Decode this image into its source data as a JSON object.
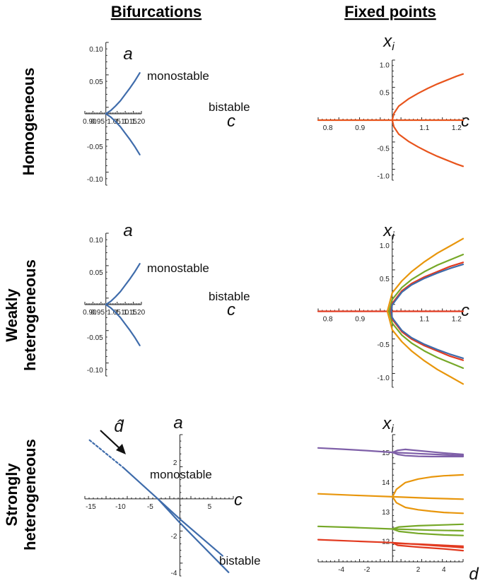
{
  "column_titles": {
    "left": "Bifurcations",
    "right": "Fixed points"
  },
  "row_labels": {
    "homogeneous": [
      "Homogeneous"
    ],
    "weakly": [
      "Weakly",
      "heterogeneous"
    ],
    "strongly": [
      "Strongly",
      "heterogeneous"
    ]
  },
  "colors": {
    "blue": "#3f6cab",
    "orange_red": "#e8541c",
    "orange": "#e8960c",
    "green": "#76a828",
    "purple": "#7e5fa8",
    "red": "#e23a20"
  },
  "chart_data": [
    {
      "id": "bif-homogeneous",
      "type": "line",
      "title": "Bifurcations — Homogeneous",
      "xlabel": "c",
      "ylabel": "a",
      "xlim": [
        0.87,
        1.22
      ],
      "ylim": [
        -0.11,
        0.11
      ],
      "xticks": [
        "0.90",
        "0.95",
        "1.05",
        "1.10",
        "1.15",
        "1.20"
      ],
      "yticks": [
        "0.10",
        "0.05",
        "-0.05",
        "-0.10"
      ],
      "regions": [
        "monostable",
        "bistable"
      ],
      "series": [
        {
          "name": "upper branch",
          "color": "#3f6cab",
          "x": [
            1.0,
            1.03,
            1.06,
            1.09,
            1.12,
            1.15,
            1.18,
            1.21
          ],
          "y": [
            0.0,
            0.005,
            0.012,
            0.02,
            0.03,
            0.04,
            0.051,
            0.063
          ]
        },
        {
          "name": "lower branch",
          "color": "#3f6cab",
          "x": [
            1.0,
            1.03,
            1.06,
            1.09,
            1.12,
            1.15,
            1.18,
            1.21
          ],
          "y": [
            0.0,
            -0.005,
            -0.012,
            -0.02,
            -0.03,
            -0.04,
            -0.051,
            -0.063
          ]
        }
      ]
    },
    {
      "id": "fp-homogeneous",
      "type": "line",
      "title": "Fixed points — Homogeneous",
      "xlabel": "c",
      "ylabel": "x_i",
      "xlim": [
        0.77,
        1.22
      ],
      "ylim": [
        -1.08,
        1.08
      ],
      "xticks": [
        "0.8",
        "0.9",
        "1.1",
        "1.2"
      ],
      "yticks": [
        "1.0",
        "0.5",
        "-0.5",
        "-1.0"
      ],
      "series": [
        {
          "name": "trivial",
          "color": "#e8541c",
          "x": [
            0.77,
            1.22
          ],
          "y": [
            0.0,
            0.0
          ]
        },
        {
          "name": "upper",
          "color": "#e8541c",
          "x": [
            1.0,
            1.005,
            1.02,
            1.05,
            1.08,
            1.11,
            1.14,
            1.17,
            1.2,
            1.22
          ],
          "y": [
            0.0,
            0.12,
            0.25,
            0.38,
            0.48,
            0.57,
            0.65,
            0.72,
            0.79,
            0.83
          ]
        },
        {
          "name": "lower",
          "color": "#e8541c",
          "x": [
            1.0,
            1.005,
            1.02,
            1.05,
            1.08,
            1.11,
            1.14,
            1.17,
            1.2,
            1.22
          ],
          "y": [
            0.0,
            -0.12,
            -0.25,
            -0.38,
            -0.48,
            -0.57,
            -0.65,
            -0.72,
            -0.79,
            -0.83
          ]
        }
      ]
    },
    {
      "id": "bif-weak",
      "type": "line",
      "title": "Bifurcations — Weakly heterogeneous",
      "xlabel": "c",
      "ylabel": "a",
      "xlim": [
        0.87,
        1.22
      ],
      "ylim": [
        -0.11,
        0.11
      ],
      "xticks": [
        "0.90",
        "0.95",
        "1.05",
        "1.10",
        "1.15",
        "1.20"
      ],
      "yticks": [
        "0.10",
        "0.05",
        "-0.05",
        "-0.10"
      ],
      "regions": [
        "monostable",
        "bistable"
      ],
      "series": [
        {
          "name": "upper branch",
          "color": "#3f6cab",
          "x": [
            1.0,
            1.03,
            1.06,
            1.09,
            1.12,
            1.15,
            1.18,
            1.21
          ],
          "y": [
            0.0,
            0.005,
            0.012,
            0.02,
            0.03,
            0.04,
            0.051,
            0.063
          ]
        },
        {
          "name": "lower branch",
          "color": "#3f6cab",
          "x": [
            1.0,
            1.03,
            1.06,
            1.09,
            1.12,
            1.15,
            1.18,
            1.21
          ],
          "y": [
            0.0,
            -0.005,
            -0.012,
            -0.02,
            -0.03,
            -0.04,
            -0.051,
            -0.063
          ]
        }
      ]
    },
    {
      "id": "fp-weak",
      "type": "line",
      "title": "Fixed points — Weakly heterogeneous",
      "xlabel": "c",
      "ylabel": "x_i",
      "xlim": [
        0.77,
        1.22
      ],
      "ylim": [
        -1.15,
        1.15
      ],
      "xticks": [
        "0.8",
        "0.9",
        "1.1",
        "1.2"
      ],
      "yticks": [
        "1.0",
        "0.5",
        "-0.5",
        "-1.0"
      ],
      "series": [
        {
          "name": "trivial",
          "color": "#e23a20",
          "x": [
            0.77,
            1.22
          ],
          "y": [
            0.0,
            0.0
          ]
        },
        {
          "name": "orange +",
          "color": "#e8960c",
          "x": [
            0.985,
            1.0,
            1.03,
            1.06,
            1.1,
            1.14,
            1.18,
            1.22
          ],
          "y": [
            0.0,
            0.28,
            0.46,
            0.6,
            0.75,
            0.88,
            0.99,
            1.1
          ]
        },
        {
          "name": "orange -",
          "color": "#e8960c",
          "x": [
            0.985,
            1.0,
            1.03,
            1.06,
            1.1,
            1.14,
            1.18,
            1.22
          ],
          "y": [
            0.0,
            -0.28,
            -0.46,
            -0.6,
            -0.75,
            -0.88,
            -0.99,
            -1.1
          ]
        },
        {
          "name": "green +",
          "color": "#76a828",
          "x": [
            0.99,
            1.0,
            1.03,
            1.06,
            1.1,
            1.14,
            1.18,
            1.22
          ],
          "y": [
            0.0,
            0.18,
            0.36,
            0.48,
            0.6,
            0.7,
            0.78,
            0.86
          ]
        },
        {
          "name": "green -",
          "color": "#76a828",
          "x": [
            0.99,
            1.0,
            1.03,
            1.06,
            1.1,
            1.14,
            1.18,
            1.22
          ],
          "y": [
            0.0,
            -0.18,
            -0.36,
            -0.48,
            -0.6,
            -0.7,
            -0.78,
            -0.86
          ]
        },
        {
          "name": "red +",
          "color": "#e23a20",
          "x": [
            0.995,
            1.0,
            1.03,
            1.06,
            1.1,
            1.14,
            1.18,
            1.22
          ],
          "y": [
            0.0,
            0.12,
            0.31,
            0.42,
            0.52,
            0.6,
            0.68,
            0.74
          ]
        },
        {
          "name": "red -",
          "color": "#e23a20",
          "x": [
            0.995,
            1.0,
            1.03,
            1.06,
            1.1,
            1.14,
            1.18,
            1.22
          ],
          "y": [
            0.0,
            -0.12,
            -0.31,
            -0.42,
            -0.52,
            -0.6,
            -0.68,
            -0.74
          ]
        },
        {
          "name": "blue +",
          "color": "#3f6cab",
          "x": [
            0.997,
            1.0,
            1.03,
            1.06,
            1.1,
            1.14,
            1.18,
            1.22
          ],
          "y": [
            0.0,
            0.1,
            0.29,
            0.4,
            0.5,
            0.58,
            0.65,
            0.71
          ]
        },
        {
          "name": "blue -",
          "color": "#3f6cab",
          "x": [
            0.997,
            1.0,
            1.03,
            1.06,
            1.1,
            1.14,
            1.18,
            1.22
          ],
          "y": [
            0.0,
            -0.1,
            -0.29,
            -0.4,
            -0.5,
            -0.58,
            -0.65,
            -0.71
          ]
        }
      ]
    },
    {
      "id": "bif-strong",
      "type": "line",
      "title": "Bifurcations — Strongly heterogeneous",
      "xlabel": "c",
      "ylabel": "a",
      "xlim": [
        -16,
        9
      ],
      "ylim": [
        -4.2,
        3.5
      ],
      "xticks": [
        "-15",
        "-10",
        "-5",
        "5"
      ],
      "yticks": [
        "2",
        "-2",
        "-4"
      ],
      "regions": [
        "monostable",
        "bistable"
      ],
      "annotation": "d̂",
      "series": [
        {
          "name": "dashed extension",
          "color": "#3f6cab",
          "dashed": true,
          "x": [
            -15.2,
            -9.5
          ],
          "y": [
            3.2,
            1.7
          ]
        },
        {
          "name": "main branch",
          "color": "#3f6cab",
          "x": [
            -9.5,
            -3.7
          ],
          "y": [
            1.7,
            0.0
          ]
        },
        {
          "name": "upper split",
          "color": "#3f6cab",
          "x": [
            -3.7,
            0,
            7.2
          ],
          "y": [
            0.0,
            -1.1,
            -3.1
          ]
        },
        {
          "name": "lower split",
          "color": "#3f6cab",
          "x": [
            -3.7,
            0,
            8.2
          ],
          "y": [
            0.0,
            -1.3,
            -4.0
          ]
        }
      ]
    },
    {
      "id": "fp-strong",
      "type": "line",
      "title": "Fixed points — Strongly heterogeneous",
      "xlabel": "d",
      "ylabel": "x_i",
      "xlim": [
        -5.8,
        5.5
      ],
      "ylim": [
        11.3,
        15.6
      ],
      "xticks": [
        "-4",
        "-2",
        "2",
        "4"
      ],
      "yticks": [
        "15",
        "14",
        "13",
        "12"
      ],
      "series": [
        {
          "name": "purple base",
          "color": "#7e5fa8",
          "x": [
            -5.8,
            -4,
            -2,
            0,
            2,
            4,
            5.5
          ],
          "y": [
            15.15,
            15.11,
            15.06,
            15.0,
            14.96,
            14.92,
            14.89
          ]
        },
        {
          "name": "purple up",
          "color": "#7e5fa8",
          "x": [
            0,
            0.4,
            1,
            2,
            3,
            4,
            5.5
          ],
          "y": [
            15.0,
            15.07,
            15.1,
            15.06,
            15.02,
            14.98,
            14.93
          ]
        },
        {
          "name": "purple low",
          "color": "#7e5fa8",
          "x": [
            0,
            0.4,
            1,
            2,
            3,
            4,
            5.5
          ],
          "y": [
            15.0,
            14.93,
            14.89,
            14.87,
            14.86,
            14.86,
            14.86
          ]
        },
        {
          "name": "orange base",
          "color": "#e8960c",
          "x": [
            -5.8,
            -3,
            0,
            3,
            5.5
          ],
          "y": [
            13.6,
            13.55,
            13.5,
            13.45,
            13.42
          ]
        },
        {
          "name": "orange up",
          "color": "#e8960c",
          "x": [
            0,
            0.3,
            1,
            2,
            3,
            4,
            5.5
          ],
          "y": [
            13.5,
            13.75,
            13.98,
            14.1,
            14.17,
            14.21,
            14.24
          ]
        },
        {
          "name": "orange low",
          "color": "#e8960c",
          "x": [
            0,
            0.3,
            1,
            2,
            3,
            4,
            5.5
          ],
          "y": [
            13.5,
            13.3,
            13.14,
            13.06,
            13.01,
            12.97,
            12.94
          ]
        },
        {
          "name": "green base",
          "color": "#76a828",
          "x": [
            -5.8,
            -3,
            0,
            3,
            5.5
          ],
          "y": [
            12.5,
            12.46,
            12.41,
            12.37,
            12.35
          ]
        },
        {
          "name": "green up",
          "color": "#76a828",
          "x": [
            0,
            0.5,
            2,
            4,
            5.5
          ],
          "y": [
            12.41,
            12.48,
            12.52,
            12.55,
            12.57
          ]
        },
        {
          "name": "green low",
          "color": "#76a828",
          "x": [
            0,
            0.5,
            2,
            4,
            5.5
          ],
          "y": [
            12.41,
            12.33,
            12.26,
            12.21,
            12.19
          ]
        },
        {
          "name": "red base",
          "color": "#e23a20",
          "x": [
            -5.8,
            -3,
            0,
            3,
            5.5
          ],
          "y": [
            12.05,
            12.0,
            11.95,
            11.86,
            11.78
          ]
        },
        {
          "name": "red up",
          "color": "#e23a20",
          "x": [
            0,
            0.4,
            2,
            4,
            5.5
          ],
          "y": [
            11.95,
            11.92,
            11.9,
            11.86,
            11.83
          ]
        },
        {
          "name": "red low",
          "color": "#e23a20",
          "x": [
            0,
            0.4,
            2,
            4,
            5.5
          ],
          "y": [
            11.95,
            11.86,
            11.8,
            11.74,
            11.68
          ]
        }
      ]
    }
  ]
}
